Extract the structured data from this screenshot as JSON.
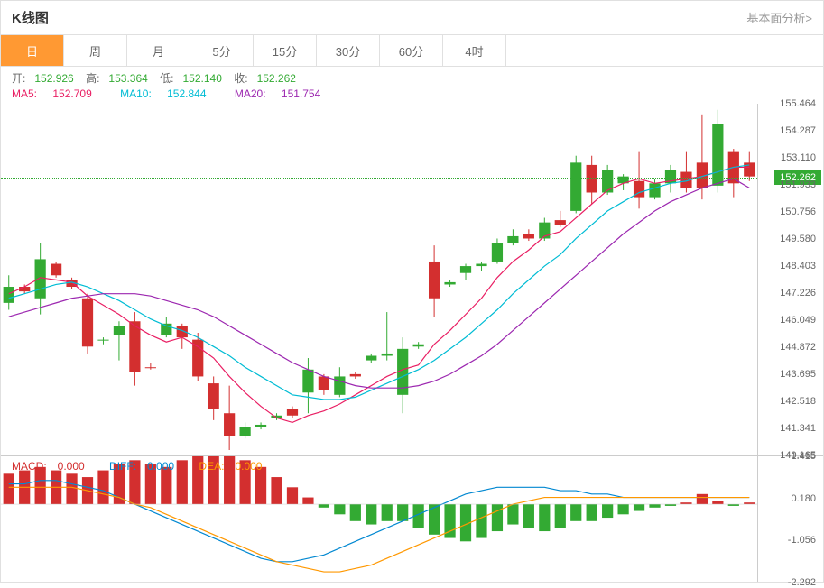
{
  "header": {
    "title": "K线图",
    "link": "基本面分析>"
  },
  "tabs": [
    "日",
    "周",
    "月",
    "5分",
    "15分",
    "30分",
    "60分",
    "4时"
  ],
  "active_tab": 0,
  "ohlc": {
    "open_label": "开:",
    "open": "152.926",
    "high_label": "高:",
    "high": "153.364",
    "low_label": "低:",
    "low": "152.140",
    "close_label": "收:",
    "close": "152.262"
  },
  "ma": {
    "ma5_label": "MA5:",
    "ma5": "152.709",
    "ma10_label": "MA10:",
    "ma10": "152.844",
    "ma20_label": "MA20:",
    "ma20": "151.754"
  },
  "macd_info": {
    "macd_label": "MACD:",
    "macd": "0.000",
    "diff_label": "DIFF:",
    "diff": "0.000",
    "dea_label": "DEA:",
    "dea": "0.000"
  },
  "chart": {
    "ymin": 140.165,
    "ymax": 155.464,
    "yticks": [
      155.464,
      154.287,
      153.11,
      151.933,
      150.756,
      149.58,
      148.403,
      147.226,
      146.049,
      144.872,
      143.695,
      142.518,
      141.341,
      140.165
    ],
    "last_price": 152.262,
    "colors": {
      "up": "#33aa33",
      "down": "#d32f2f",
      "ma5": "#e91e63",
      "ma10": "#00bcd4",
      "ma20": "#9c27b0",
      "grid": "#e8e8e8"
    },
    "candles": [
      {
        "o": 146.8,
        "h": 148.0,
        "l": 146.5,
        "c": 147.5,
        "v": 1
      },
      {
        "o": 147.5,
        "h": 147.6,
        "l": 147.2,
        "c": 147.3,
        "v": -1
      },
      {
        "o": 147.0,
        "h": 149.4,
        "l": 146.3,
        "c": 148.7,
        "v": 1
      },
      {
        "o": 148.5,
        "h": 148.6,
        "l": 147.9,
        "c": 148.0,
        "v": -1
      },
      {
        "o": 147.8,
        "h": 147.9,
        "l": 147.4,
        "c": 147.5,
        "v": -1
      },
      {
        "o": 147.0,
        "h": 147.2,
        "l": 144.6,
        "c": 144.9,
        "v": -1
      },
      {
        "o": 145.2,
        "h": 145.3,
        "l": 145.0,
        "c": 145.2,
        "v": 1
      },
      {
        "o": 145.4,
        "h": 146.0,
        "l": 144.3,
        "c": 145.8,
        "v": 1
      },
      {
        "o": 146.0,
        "h": 146.4,
        "l": 143.2,
        "c": 143.8,
        "v": -1
      },
      {
        "o": 144.0,
        "h": 144.2,
        "l": 143.9,
        "c": 144.0,
        "v": -1
      },
      {
        "o": 145.4,
        "h": 146.2,
        "l": 145.3,
        "c": 145.9,
        "v": 1
      },
      {
        "o": 145.8,
        "h": 145.9,
        "l": 144.8,
        "c": 145.3,
        "v": -1
      },
      {
        "o": 145.2,
        "h": 145.5,
        "l": 143.4,
        "c": 143.6,
        "v": -1
      },
      {
        "o": 143.3,
        "h": 143.6,
        "l": 141.7,
        "c": 142.2,
        "v": -1
      },
      {
        "o": 142.0,
        "h": 143.2,
        "l": 140.4,
        "c": 141.0,
        "v": -1
      },
      {
        "o": 141.0,
        "h": 141.6,
        "l": 140.9,
        "c": 141.4,
        "v": 1
      },
      {
        "o": 141.4,
        "h": 141.6,
        "l": 141.3,
        "c": 141.5,
        "v": 1
      },
      {
        "o": 141.8,
        "h": 142.0,
        "l": 141.7,
        "c": 141.9,
        "v": 1
      },
      {
        "o": 142.2,
        "h": 142.3,
        "l": 141.8,
        "c": 141.9,
        "v": -1
      },
      {
        "o": 142.9,
        "h": 144.4,
        "l": 142.0,
        "c": 143.9,
        "v": 1
      },
      {
        "o": 143.6,
        "h": 143.7,
        "l": 142.8,
        "c": 143.0,
        "v": -1
      },
      {
        "o": 142.8,
        "h": 144.0,
        "l": 142.7,
        "c": 143.6,
        "v": 1
      },
      {
        "o": 143.7,
        "h": 143.8,
        "l": 143.5,
        "c": 143.6,
        "v": -1
      },
      {
        "o": 144.3,
        "h": 144.6,
        "l": 144.2,
        "c": 144.5,
        "v": 1
      },
      {
        "o": 144.5,
        "h": 146.4,
        "l": 144.3,
        "c": 144.6,
        "v": 1
      },
      {
        "o": 142.8,
        "h": 145.3,
        "l": 142.0,
        "c": 144.8,
        "v": 1
      },
      {
        "o": 144.9,
        "h": 145.1,
        "l": 144.8,
        "c": 145.0,
        "v": 1
      },
      {
        "o": 148.6,
        "h": 149.3,
        "l": 146.2,
        "c": 147.0,
        "v": -1
      },
      {
        "o": 147.6,
        "h": 147.8,
        "l": 147.5,
        "c": 147.7,
        "v": 1
      },
      {
        "o": 148.1,
        "h": 148.5,
        "l": 147.8,
        "c": 148.4,
        "v": 1
      },
      {
        "o": 148.4,
        "h": 148.6,
        "l": 148.2,
        "c": 148.5,
        "v": 1
      },
      {
        "o": 148.6,
        "h": 149.6,
        "l": 148.5,
        "c": 149.4,
        "v": 1
      },
      {
        "o": 149.4,
        "h": 150.0,
        "l": 149.3,
        "c": 149.7,
        "v": 1
      },
      {
        "o": 149.8,
        "h": 150.0,
        "l": 149.5,
        "c": 149.6,
        "v": -1
      },
      {
        "o": 149.6,
        "h": 150.5,
        "l": 149.5,
        "c": 150.3,
        "v": 1
      },
      {
        "o": 150.4,
        "h": 150.8,
        "l": 150.1,
        "c": 150.2,
        "v": -1
      },
      {
        "o": 150.8,
        "h": 153.2,
        "l": 150.7,
        "c": 152.9,
        "v": 1
      },
      {
        "o": 152.8,
        "h": 153.2,
        "l": 151.1,
        "c": 151.6,
        "v": -1
      },
      {
        "o": 151.6,
        "h": 152.8,
        "l": 151.5,
        "c": 152.6,
        "v": 1
      },
      {
        "o": 152.0,
        "h": 152.4,
        "l": 151.7,
        "c": 152.3,
        "v": 1
      },
      {
        "o": 152.1,
        "h": 153.4,
        "l": 150.9,
        "c": 151.4,
        "v": -1
      },
      {
        "o": 151.4,
        "h": 152.2,
        "l": 151.3,
        "c": 152.0,
        "v": 1
      },
      {
        "o": 152.0,
        "h": 152.8,
        "l": 151.6,
        "c": 152.6,
        "v": 1
      },
      {
        "o": 152.5,
        "h": 153.4,
        "l": 151.6,
        "c": 151.8,
        "v": -1
      },
      {
        "o": 152.9,
        "h": 155.0,
        "l": 151.3,
        "c": 151.8,
        "v": -1
      },
      {
        "o": 151.9,
        "h": 155.2,
        "l": 151.6,
        "c": 154.6,
        "v": 1
      },
      {
        "o": 153.4,
        "h": 153.5,
        "l": 151.4,
        "c": 152.0,
        "v": -1
      },
      {
        "o": 152.9,
        "h": 153.4,
        "l": 152.1,
        "c": 152.3,
        "v": -1
      }
    ],
    "ma5_line": [
      147.2,
      147.5,
      147.9,
      147.8,
      147.7,
      147.1,
      146.7,
      146.3,
      145.8,
      145.4,
      145.1,
      145.3,
      144.9,
      144.4,
      143.6,
      142.9,
      142.3,
      141.8,
      141.6,
      141.9,
      142.1,
      142.4,
      142.8,
      143.2,
      143.6,
      143.9,
      144.1,
      145.0,
      145.6,
      146.3,
      147.0,
      147.9,
      148.6,
      149.1,
      149.7,
      149.9,
      150.5,
      151.1,
      151.7,
      152.0,
      152.2,
      152.0,
      152.1,
      152.2,
      152.3,
      152.5,
      152.7,
      152.7
    ],
    "ma10_line": [
      147.0,
      147.2,
      147.4,
      147.6,
      147.7,
      147.5,
      147.2,
      146.9,
      146.5,
      146.1,
      145.8,
      145.6,
      145.3,
      144.9,
      144.5,
      144.0,
      143.6,
      143.2,
      142.8,
      142.7,
      142.6,
      142.6,
      142.7,
      143.0,
      143.3,
      143.6,
      143.9,
      144.3,
      144.8,
      145.3,
      145.9,
      146.5,
      147.2,
      147.8,
      148.4,
      148.9,
      149.6,
      150.2,
      150.8,
      151.2,
      151.6,
      151.8,
      152.0,
      152.1,
      152.3,
      152.5,
      152.7,
      152.8
    ],
    "ma20_line": [
      146.2,
      146.4,
      146.6,
      146.8,
      147.0,
      147.1,
      147.2,
      147.2,
      147.2,
      147.1,
      146.9,
      146.7,
      146.5,
      146.2,
      145.8,
      145.4,
      145.0,
      144.6,
      144.2,
      143.9,
      143.6,
      143.4,
      143.2,
      143.1,
      143.1,
      143.1,
      143.2,
      143.4,
      143.7,
      144.1,
      144.5,
      145.0,
      145.6,
      146.2,
      146.8,
      147.4,
      148.0,
      148.6,
      149.2,
      149.8,
      150.3,
      150.8,
      151.2,
      151.5,
      151.8,
      152.0,
      152.2,
      151.8
    ]
  },
  "macd": {
    "ymin": -2.292,
    "ymax": 1.415,
    "yticks": [
      1.415,
      0.18,
      -1.056,
      -2.292
    ],
    "bars": [
      0.9,
      1.0,
      1.1,
      1.0,
      0.9,
      0.8,
      1.0,
      1.2,
      1.3,
      1.2,
      1.1,
      1.3,
      1.5,
      1.6,
      1.5,
      1.3,
      1.1,
      0.8,
      0.5,
      0.2,
      -0.1,
      -0.3,
      -0.5,
      -0.6,
      -0.5,
      -0.5,
      -0.7,
      -0.9,
      -1.0,
      -1.1,
      -1.0,
      -0.8,
      -0.6,
      -0.7,
      -0.8,
      -0.7,
      -0.5,
      -0.5,
      -0.4,
      -0.3,
      -0.2,
      -0.1,
      -0.05,
      0.05,
      0.3,
      0.1,
      -0.05,
      0.05
    ],
    "diff_line": [
      0.6,
      0.6,
      0.7,
      0.7,
      0.6,
      0.5,
      0.4,
      0.2,
      0.0,
      -0.2,
      -0.4,
      -0.6,
      -0.8,
      -1.0,
      -1.2,
      -1.4,
      -1.6,
      -1.7,
      -1.7,
      -1.6,
      -1.5,
      -1.3,
      -1.1,
      -0.9,
      -0.7,
      -0.5,
      -0.3,
      -0.1,
      0.1,
      0.3,
      0.4,
      0.5,
      0.5,
      0.5,
      0.5,
      0.4,
      0.4,
      0.3,
      0.3,
      0.2,
      0.2,
      0.2,
      0.2,
      0.2,
      0.2,
      0.2,
      0.2,
      0.2
    ],
    "dea_line": [
      0.5,
      0.5,
      0.5,
      0.5,
      0.5,
      0.4,
      0.3,
      0.2,
      0.0,
      -0.1,
      -0.3,
      -0.5,
      -0.7,
      -0.9,
      -1.1,
      -1.3,
      -1.5,
      -1.7,
      -1.8,
      -1.9,
      -2.0,
      -2.0,
      -1.9,
      -1.8,
      -1.6,
      -1.4,
      -1.2,
      -1.0,
      -0.8,
      -0.6,
      -0.4,
      -0.2,
      0.0,
      0.1,
      0.2,
      0.2,
      0.2,
      0.2,
      0.2,
      0.2,
      0.2,
      0.2,
      0.2,
      0.2,
      0.2,
      0.2,
      0.2,
      0.2
    ]
  }
}
